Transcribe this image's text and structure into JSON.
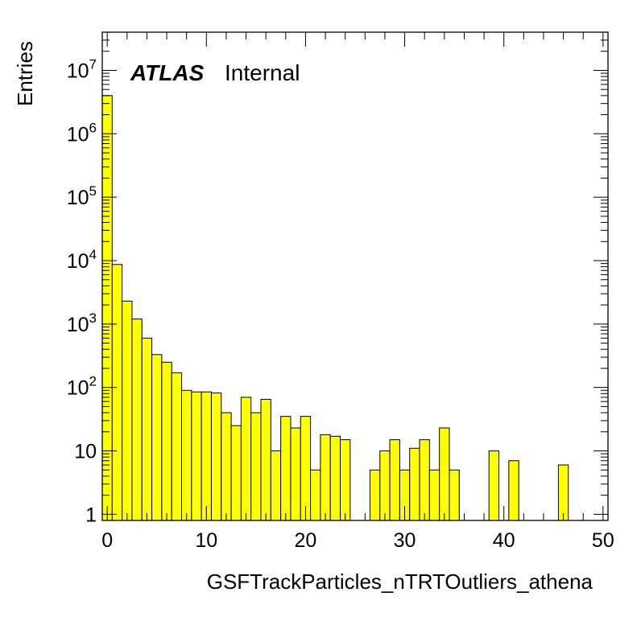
{
  "chart_data": {
    "type": "bar",
    "title": "",
    "xlabel": "GSFTrackParticles_nTRTOutliers_athena",
    "ylabel": "Entries",
    "ylog": true,
    "xlim": [
      -0.5,
      50.5
    ],
    "ylim": [
      0.8,
      40000000
    ],
    "bar_color": "#ffff00",
    "edge_color": "#000000",
    "grid": false,
    "legend": "none",
    "atlas_label": {
      "bold": "ATLAS",
      "normal": "Internal"
    },
    "x_ticks": [
      "0",
      "10",
      "20",
      "30",
      "40",
      "50"
    ],
    "y_ticks": [
      {
        "value": 1,
        "base": "1",
        "exp": ""
      },
      {
        "value": 10,
        "base": "10",
        "exp": ""
      },
      {
        "value": 100,
        "base": "10",
        "exp": "2"
      },
      {
        "value": 1000,
        "base": "10",
        "exp": "3"
      },
      {
        "value": 10000,
        "base": "10",
        "exp": "4"
      },
      {
        "value": 100000,
        "base": "10",
        "exp": "5"
      },
      {
        "value": 1000000,
        "base": "10",
        "exp": "6"
      },
      {
        "value": 10000000,
        "base": "10",
        "exp": "7"
      }
    ],
    "bin_width": 1,
    "categories": [
      0,
      1,
      2,
      3,
      4,
      5,
      6,
      7,
      8,
      9,
      10,
      11,
      12,
      13,
      14,
      15,
      16,
      17,
      18,
      19,
      20,
      21,
      22,
      23,
      24,
      25,
      26,
      27,
      28,
      29,
      30,
      31,
      32,
      33,
      34,
      35,
      36,
      37,
      38,
      39,
      40,
      41,
      42,
      43,
      44,
      45,
      46,
      47,
      48,
      49,
      50
    ],
    "values": [
      4000000,
      8700,
      2300,
      1200,
      600,
      330,
      250,
      170,
      90,
      85,
      85,
      82,
      40,
      25,
      70,
      40,
      65,
      10,
      35,
      23,
      35,
      5,
      18,
      17,
      15,
      0,
      0,
      5,
      10,
      15,
      5,
      11,
      15,
      5,
      23,
      5,
      0,
      0,
      0,
      10,
      0,
      7,
      0,
      0,
      0,
      0,
      6,
      0,
      0,
      0,
      0
    ]
  }
}
